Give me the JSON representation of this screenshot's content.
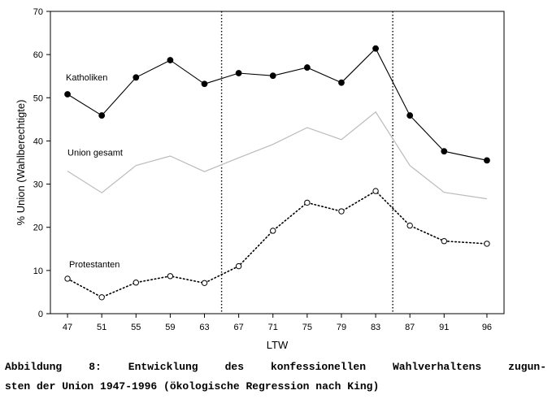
{
  "chart_data": {
    "type": "line",
    "x": [
      "47",
      "51",
      "55",
      "59",
      "63",
      "67",
      "71",
      "75",
      "79",
      "83",
      "87",
      "91",
      "96"
    ],
    "x_values": [
      47,
      51,
      55,
      59,
      63,
      67,
      71,
      75,
      79,
      83,
      87,
      91,
      96
    ],
    "xlabel": "LTW",
    "ylabel": "% Union (Wahlberechtigte)",
    "ylim": [
      0,
      70
    ],
    "xlim": [
      45,
      98
    ],
    "yticks": [
      0,
      10,
      20,
      30,
      40,
      50,
      60,
      70
    ],
    "vlines": [
      65,
      85
    ],
    "series": [
      {
        "name": "Katholiken",
        "style": "solid-filled-markers",
        "color": "#000000",
        "values": [
          50.8,
          45.9,
          54.7,
          58.7,
          53.2,
          55.7,
          55.1,
          57.0,
          53.5,
          61.4,
          45.9,
          37.6,
          35.5
        ]
      },
      {
        "name": "Union gesamt",
        "style": "solid-no-markers",
        "color": "#bbbbbb",
        "values": [
          33.0,
          28.0,
          34.3,
          36.5,
          32.9,
          36.1,
          39.2,
          43.1,
          40.3,
          46.7,
          34.3,
          28.1,
          26.6
        ]
      },
      {
        "name": "Protestanten",
        "style": "dotted-open-markers",
        "color": "#000000",
        "values": [
          8.1,
          3.8,
          7.2,
          8.7,
          7.1,
          11.0,
          19.2,
          25.7,
          23.7,
          28.4,
          20.4,
          16.8,
          16.2
        ]
      }
    ]
  },
  "caption": {
    "line1": "Abbildung 8: Entwicklung des konfessionellen Wahlverhaltens zugun-",
    "line2": "sten der Union 1947-1996 (ökologische Regression nach King)"
  }
}
